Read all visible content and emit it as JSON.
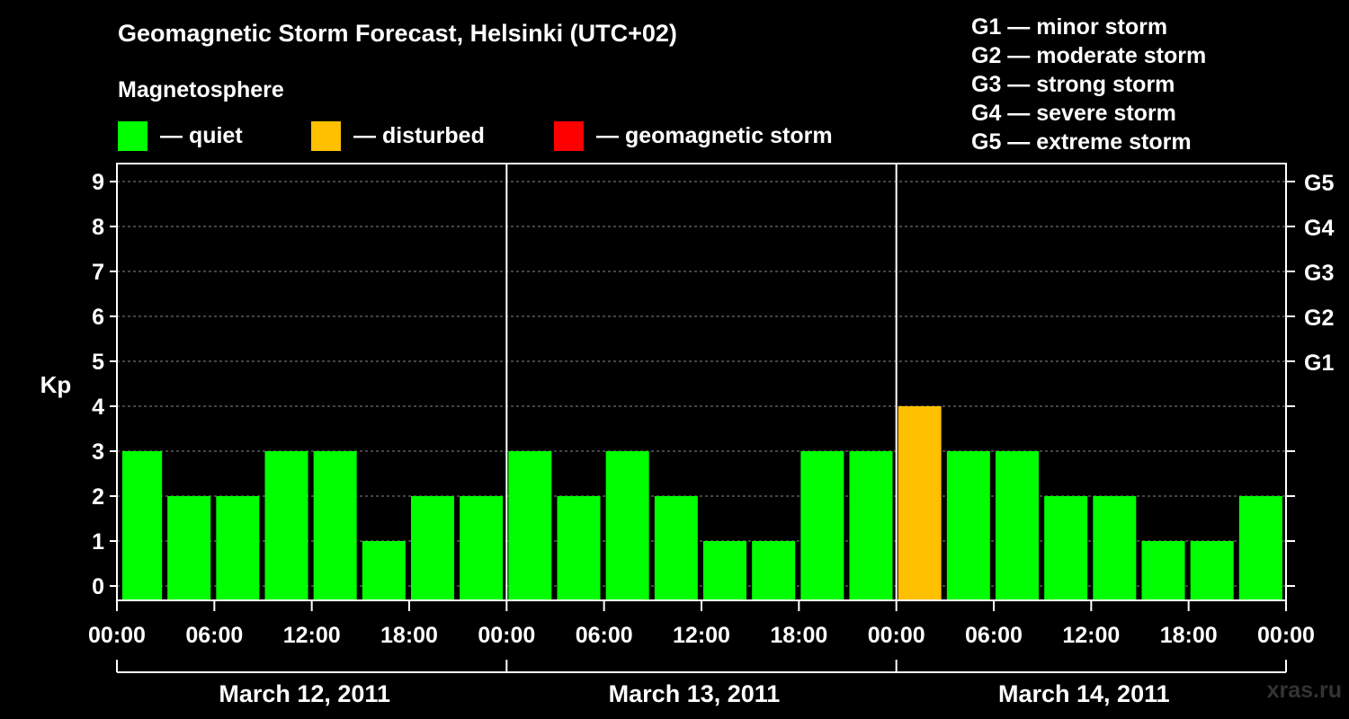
{
  "header": {
    "title": "Geomagnetic Storm Forecast, Helsinki (UTC+02)",
    "legend_heading": "Magnetosphere"
  },
  "legend": [
    {
      "label": "— quiet",
      "color": "#00ff00"
    },
    {
      "label": "— disturbed",
      "color": "#ffc000"
    },
    {
      "label": "— geomagnetic storm",
      "color": "#ff0000"
    }
  ],
  "storm_scale": [
    "G1 — minor storm",
    "G2 — moderate storm",
    "G3 — strong storm",
    "G4 — severe storm",
    "G5 — extreme storm"
  ],
  "watermark": "xras.ru",
  "chart_data": {
    "type": "bar",
    "ylabel": "Kp",
    "ylim": [
      0,
      9
    ],
    "y_ticks": [
      "0",
      "1",
      "2",
      "3",
      "4",
      "5",
      "6",
      "7",
      "8",
      "9"
    ],
    "right_axis_ticks": [
      {
        "kp": 5,
        "label": "G1"
      },
      {
        "kp": 6,
        "label": "G2"
      },
      {
        "kp": 7,
        "label": "G3"
      },
      {
        "kp": 8,
        "label": "G4"
      },
      {
        "kp": 9,
        "label": "G5"
      }
    ],
    "x_tick_labels": [
      "00:00",
      "06:00",
      "12:00",
      "18:00",
      "00:00",
      "06:00",
      "12:00",
      "18:00",
      "00:00",
      "06:00",
      "12:00",
      "18:00",
      "00:00"
    ],
    "days": [
      "March 12, 2011",
      "March 13, 2011",
      "March 14, 2011"
    ],
    "hours_range": [
      0,
      72
    ],
    "bars": [
      {
        "start_hour": 0,
        "value": 3,
        "status": "quiet"
      },
      {
        "start_hour": 3,
        "value": 2,
        "status": "quiet"
      },
      {
        "start_hour": 6,
        "value": 2,
        "status": "quiet"
      },
      {
        "start_hour": 9,
        "value": 3,
        "status": "quiet"
      },
      {
        "start_hour": 12,
        "value": 3,
        "status": "quiet"
      },
      {
        "start_hour": 15,
        "value": 1,
        "status": "quiet"
      },
      {
        "start_hour": 18,
        "value": 2,
        "status": "quiet"
      },
      {
        "start_hour": 21,
        "value": 2,
        "status": "quiet"
      },
      {
        "start_hour": 24,
        "value": 3,
        "status": "quiet"
      },
      {
        "start_hour": 27,
        "value": 2,
        "status": "quiet"
      },
      {
        "start_hour": 30,
        "value": 3,
        "status": "quiet"
      },
      {
        "start_hour": 33,
        "value": 2,
        "status": "quiet"
      },
      {
        "start_hour": 36,
        "value": 1,
        "status": "quiet"
      },
      {
        "start_hour": 39,
        "value": 1,
        "status": "quiet"
      },
      {
        "start_hour": 42,
        "value": 3,
        "status": "quiet"
      },
      {
        "start_hour": 45,
        "value": 3,
        "status": "quiet"
      },
      {
        "start_hour": 48,
        "value": 4,
        "status": "disturbed"
      },
      {
        "start_hour": 51,
        "value": 3,
        "status": "quiet"
      },
      {
        "start_hour": 54,
        "value": 3,
        "status": "quiet"
      },
      {
        "start_hour": 57,
        "value": 2,
        "status": "quiet"
      },
      {
        "start_hour": 60,
        "value": 2,
        "status": "quiet"
      },
      {
        "start_hour": 63,
        "value": 1,
        "status": "quiet"
      },
      {
        "start_hour": 66,
        "value": 1,
        "status": "quiet"
      },
      {
        "start_hour": 69,
        "value": 2,
        "status": "quiet"
      }
    ],
    "status_colors": {
      "quiet": "#00ff00",
      "disturbed": "#ffc000",
      "storm": "#ff0000"
    },
    "grid": true
  }
}
